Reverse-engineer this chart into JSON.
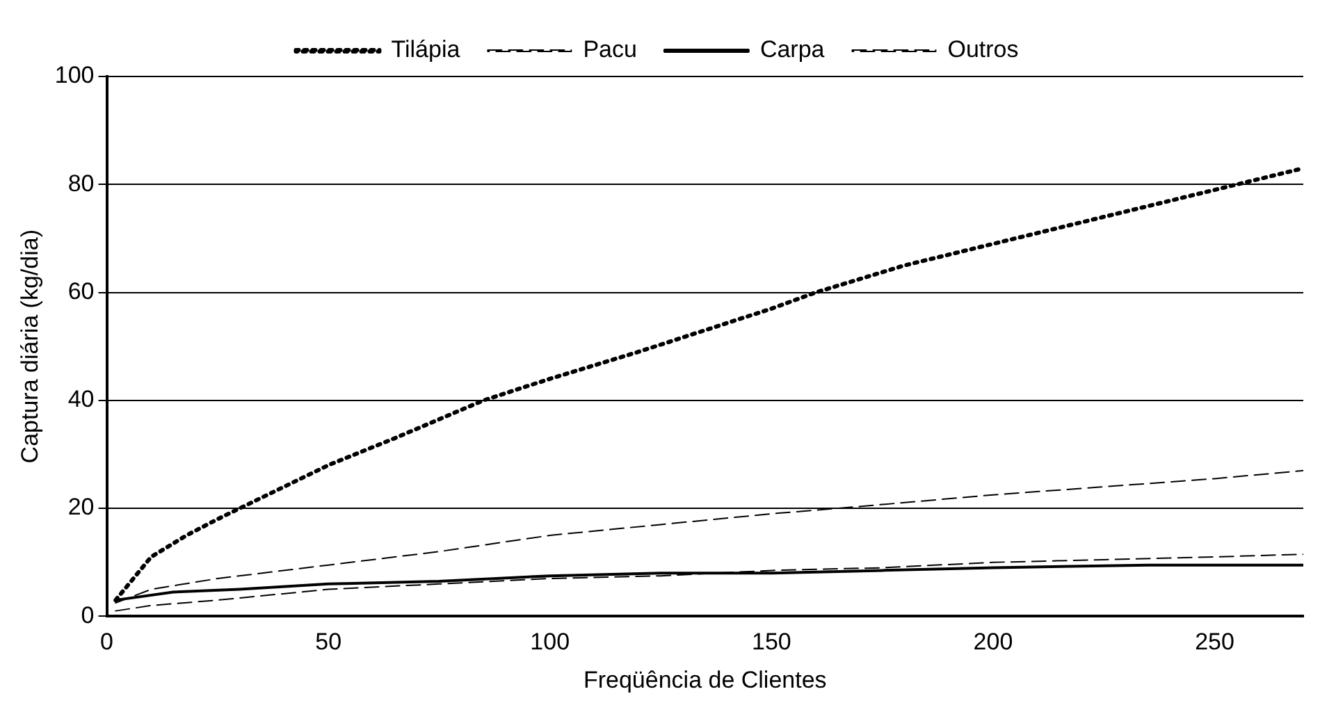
{
  "chart_data": {
    "type": "line",
    "xlabel": "Freqüência de Clientes",
    "ylabel": "Captura diária (kg/dia)",
    "xlim": [
      0,
      270
    ],
    "xticks": [
      0,
      50,
      100,
      150,
      200,
      250
    ],
    "ylim": [
      0,
      100
    ],
    "yticks": [
      0,
      20,
      40,
      60,
      80,
      100
    ],
    "grid": "y",
    "legend": "top",
    "marker": "none",
    "series": [
      {
        "name": "Tilápia",
        "color": "#000000",
        "line_style": "dotted",
        "x": [
          2,
          5,
          10,
          18,
          25,
          35,
          50,
          65,
          85,
          100,
          120,
          150,
          160,
          180,
          200,
          220,
          240,
          255,
          270
        ],
        "values": [
          3,
          6,
          11,
          15,
          18,
          22,
          28,
          33,
          40,
          44,
          49,
          57,
          60,
          65,
          69,
          73,
          77,
          80,
          83
        ]
      },
      {
        "name": "Pacu",
        "color": "#000000",
        "line_style": "dashed",
        "x": [
          2,
          10,
          25,
          50,
          75,
          100,
          125,
          150,
          165,
          200,
          225,
          250,
          270
        ],
        "values": [
          2.5,
          5,
          7,
          9.5,
          12,
          15,
          17,
          19,
          20,
          22.5,
          24,
          25.5,
          27
        ]
      },
      {
        "name": "Carpa",
        "color": "#000000",
        "line_style": "solid",
        "x": [
          2,
          15,
          30,
          50,
          75,
          100,
          125,
          150,
          175,
          200,
          235,
          270
        ],
        "values": [
          3,
          4.5,
          5,
          6,
          6.5,
          7.5,
          8,
          8,
          8.5,
          9,
          9.5,
          9.5
        ]
      },
      {
        "name": "Outros",
        "color": "#000000",
        "line_style": "dashed",
        "x": [
          2,
          10,
          25,
          50,
          75,
          100,
          125,
          150,
          175,
          200,
          225,
          250,
          270
        ],
        "values": [
          1,
          2,
          3,
          5,
          6,
          7,
          7.5,
          8.5,
          9,
          10,
          10.5,
          11,
          11.5
        ]
      }
    ]
  }
}
